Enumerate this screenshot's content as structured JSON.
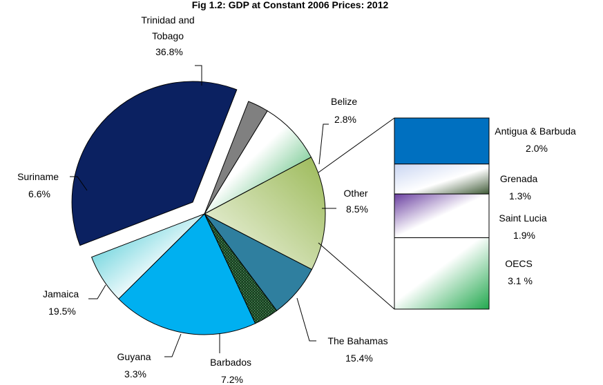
{
  "chart_data": {
    "type": "pie",
    "title": "Fig 1.2:   GDP at Constant 2006 Prices:  2012",
    "slices": [
      {
        "name": "Trinidad and Tobago",
        "value": 36.8,
        "label": "36.8%",
        "color": "#0b2161",
        "style": "solid"
      },
      {
        "name": "Belize",
        "value": 2.8,
        "label": "2.8%",
        "color": "#808080",
        "style": "solid"
      },
      {
        "name": "Other",
        "value": 8.5,
        "label": "8.5%",
        "color": "#2ea85a",
        "style": "gradient-green"
      },
      {
        "name": "The Bahamas",
        "value": 15.4,
        "label": "15.4%",
        "color": "#9ab85c",
        "style": "gradient-olive"
      },
      {
        "name": "Barbados",
        "value": 7.2,
        "label": "7.2%",
        "color": "#2f7f9f",
        "style": "solid"
      },
      {
        "name": "Guyana",
        "value": 3.3,
        "label": "3.3%",
        "color": "#1f4d2a",
        "style": "pattern"
      },
      {
        "name": "Jamaica",
        "value": 19.5,
        "label": "19.5%",
        "color": "#00b0f0",
        "style": "solid"
      },
      {
        "name": "Suriname",
        "value": 6.6,
        "label": "6.6%",
        "color": "#4fc9d4",
        "style": "gradient-cyan"
      }
    ],
    "breakdown": {
      "of": "Other",
      "chart_type": "bar-of-pie",
      "items": [
        {
          "name": "Antigua & Barbuda",
          "value": 2.0,
          "label": "2.0%",
          "color": "#0070c0",
          "style": "solid"
        },
        {
          "name": "Grenada",
          "value": 1.3,
          "label": "1.3%",
          "color": "#3e5a36",
          "style": "gradient-lavender"
        },
        {
          "name": "Saint Lucia",
          "value": 1.9,
          "label": "1.9%",
          "color": "#6a3fa0",
          "style": "gradient-purple"
        },
        {
          "name": "OECS",
          "value": 3.1,
          "label": "3.1 %",
          "color": "#2ea85a",
          "style": "gradient-green"
        }
      ]
    }
  }
}
